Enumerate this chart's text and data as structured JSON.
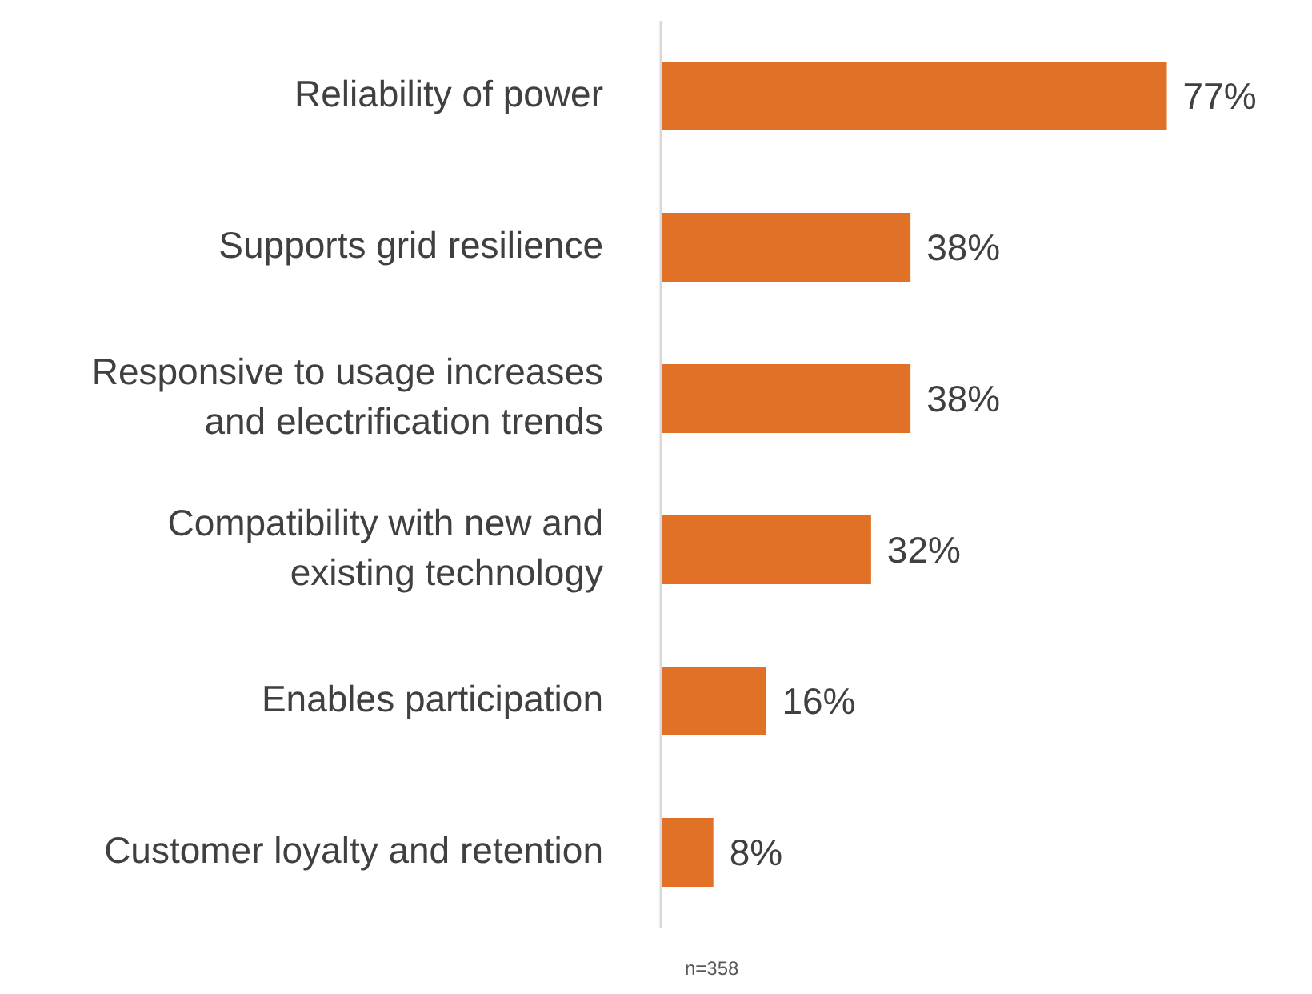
{
  "chart_data": {
    "type": "bar",
    "orientation": "horizontal",
    "categories": [
      "Reliability of power",
      "Supports grid resilience",
      "Responsive to usage increases and electrification trends",
      "Compatibility with new and existing technology",
      "Enables participation",
      "Customer loyalty and retention"
    ],
    "values": [
      77,
      38,
      38,
      32,
      16,
      8
    ],
    "value_labels": [
      "77%",
      "38%",
      "38%",
      "32%",
      "16%",
      "8%"
    ],
    "color": "#e07126",
    "tick_labels": "y",
    "annotations": [
      "n=358"
    ]
  }
}
